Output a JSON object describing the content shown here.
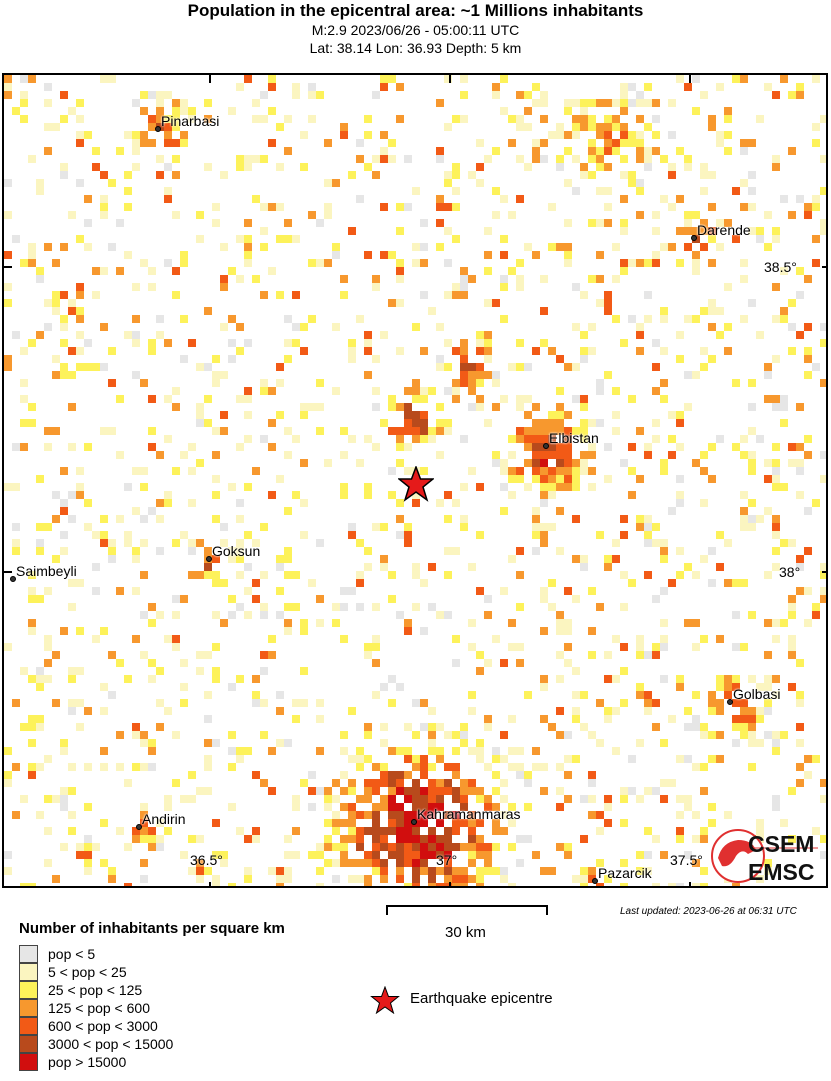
{
  "header": {
    "title": "Population in the epicentral area: ~1 Millions inhabitants",
    "event": "M:2.9 2023/06/26 - 05:00:11 UTC",
    "location": "Lat: 38.14 Lon: 36.93 Depth: 5 km"
  },
  "map": {
    "cities": [
      "Pinarbasi",
      "Darende",
      "Elbistan",
      "Goksun",
      "Saimbeyli",
      "Golbasi",
      "Andirin",
      "Kahramanmaras",
      "Pazarcik"
    ],
    "lon_ticks": [
      "36.5°",
      "37°",
      "37.5°"
    ],
    "lat_ticks": [
      "38.5°",
      "38°"
    ],
    "epicentre_icon": "red-star-icon"
  },
  "scale": {
    "label": "30 km"
  },
  "last_updated": "Last updated: 2023-06-26 at 06:31 UTC",
  "legend": {
    "title": "Number of inhabitants per square km",
    "items": [
      {
        "label": "pop < 5",
        "color": "#e6e6e6"
      },
      {
        "label": "5 < pop < 25",
        "color": "#fbf5c0"
      },
      {
        "label": "25 < pop < 125",
        "color": "#fdf25a"
      },
      {
        "label": "125 < pop < 600",
        "color": "#f7982e"
      },
      {
        "label": "600 < pop < 3000",
        "color": "#f25a16"
      },
      {
        "label": "3000 < pop < 15000",
        "color": "#b84a1c"
      },
      {
        "label": "pop > 15000",
        "color": "#d10e0e"
      }
    ],
    "epicentre_label": "Earthquake epicentre"
  },
  "logo": {
    "top": "CSEM",
    "bottom": "EMSC",
    "color": "#e03030"
  }
}
